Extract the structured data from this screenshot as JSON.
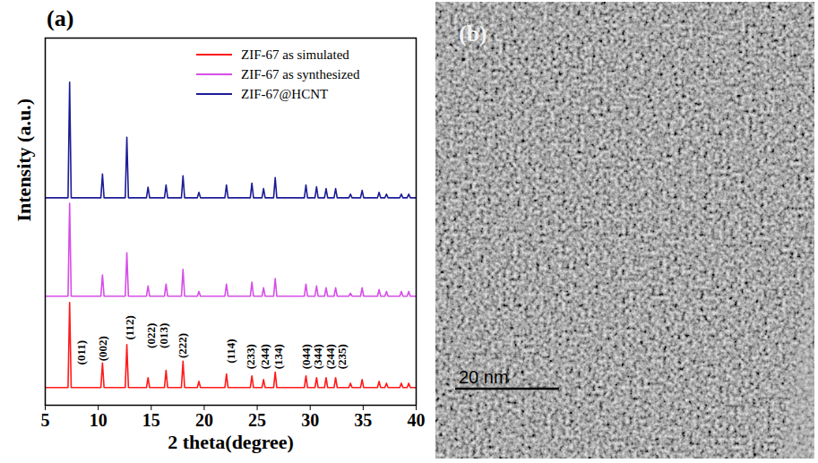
{
  "chart_data": {
    "type": "line",
    "title": "(a)",
    "x_label": "2 theta(degree)",
    "y_label": "Intensity (a.u.)",
    "xlim": [
      5,
      40
    ],
    "xticks": [
      5,
      10,
      15,
      20,
      25,
      30,
      35,
      40
    ],
    "ylim": [
      0,
      100
    ],
    "yticks": [],
    "tick_labels": "x",
    "grid": false,
    "legend": "upper right",
    "x": [
      5,
      7.15,
      7.3,
      7.45,
      10.25,
      10.4,
      10.55,
      12.55,
      12.7,
      12.85,
      14.55,
      14.7,
      14.85,
      16.25,
      16.4,
      16.55,
      17.85,
      18.0,
      18.15,
      19.35,
      19.5,
      19.65,
      21.95,
      22.1,
      22.25,
      24.35,
      24.5,
      24.65,
      25.45,
      25.6,
      25.75,
      26.55,
      26.7,
      26.85,
      29.45,
      29.6,
      29.75,
      30.45,
      30.6,
      30.75,
      31.35,
      31.5,
      31.65,
      32.25,
      32.4,
      32.55,
      33.65,
      33.8,
      33.95,
      34.75,
      34.9,
      35.05,
      36.35,
      36.5,
      36.65,
      37.05,
      37.2,
      37.35,
      38.45,
      38.6,
      38.75,
      39.15,
      39.3,
      39.45,
      40
    ],
    "series": [
      {
        "name": "ZIF-67 as simulated",
        "color": "#ff1a1a",
        "values": [
          4.8,
          4.8,
          28,
          4.8,
          4.8,
          11.5,
          4.8,
          4.8,
          16.5,
          4.8,
          4.8,
          7.5,
          4.8,
          4.8,
          9.5,
          4.8,
          4.8,
          12,
          4.8,
          4.8,
          6.5,
          4.8,
          4.8,
          8.5,
          4.8,
          4.8,
          8,
          4.8,
          4.8,
          7,
          4.8,
          4.8,
          9,
          4.8,
          4.8,
          8,
          4.8,
          4.8,
          7.5,
          4.8,
          4.8,
          7.5,
          4.8,
          4.8,
          7.5,
          4.8,
          4.8,
          6,
          4.8,
          4.8,
          7,
          4.8,
          4.8,
          6.5,
          4.8,
          4.8,
          6,
          4.8,
          4.8,
          6,
          4.8,
          4.8,
          6,
          4.8,
          4.8
        ]
      },
      {
        "name": "ZIF-67 as synthesized",
        "color": "#d64ee8",
        "values": [
          29.7,
          29.7,
          55,
          29.7,
          29.7,
          35.5,
          29.7,
          29.7,
          41.5,
          29.7,
          29.7,
          32.5,
          29.7,
          29.7,
          33,
          29.7,
          29.7,
          37,
          29.7,
          29.7,
          31,
          29.7,
          29.7,
          33,
          29.7,
          29.7,
          33.5,
          29.7,
          29.7,
          32,
          29.7,
          29.7,
          34.5,
          29.7,
          29.7,
          33,
          29.7,
          29.7,
          32.5,
          29.7,
          29.7,
          32,
          29.7,
          29.7,
          32,
          29.7,
          29.7,
          30.5,
          29.7,
          29.7,
          32,
          29.7,
          29.7,
          31.5,
          29.7,
          29.7,
          31,
          29.7,
          29.7,
          31,
          29.7,
          29.7,
          31,
          29.7,
          29.7
        ]
      },
      {
        "name": "ZIF-67@HCNT",
        "color": "#1c1c96",
        "values": [
          56.5,
          56.5,
          88,
          56.5,
          56.5,
          63,
          56.5,
          56.5,
          73,
          56.5,
          56.5,
          59.4,
          56.5,
          56.5,
          60,
          56.5,
          56.5,
          62.5,
          56.5,
          56.5,
          58,
          56.5,
          56.5,
          60,
          56.5,
          56.5,
          60.5,
          56.5,
          56.5,
          59,
          56.5,
          56.5,
          62,
          56.5,
          56.5,
          60,
          56.5,
          56.5,
          59.5,
          56.5,
          56.5,
          59,
          56.5,
          56.5,
          59,
          56.5,
          56.5,
          57.5,
          56.5,
          56.5,
          58.5,
          56.5,
          56.5,
          58,
          56.5,
          56.5,
          57.5,
          56.5,
          56.5,
          57.5,
          56.5,
          56.5,
          57.5,
          56.5,
          56.5
        ]
      }
    ],
    "annotations": [
      {
        "text": "(011)",
        "x": 8.4,
        "y": 11
      },
      {
        "text": "(002)",
        "x": 10.45,
        "y": 12
      },
      {
        "text": "(112)",
        "x": 12.95,
        "y": 17.8
      },
      {
        "text": "(022)",
        "x": 15.0,
        "y": 15.5
      },
      {
        "text": "(013)",
        "x": 16.2,
        "y": 15.5
      },
      {
        "text": "(222)",
        "x": 18.0,
        "y": 12.8
      },
      {
        "text": "(114)",
        "x": 22.5,
        "y": 11.4
      },
      {
        "text": "(233)",
        "x": 24.4,
        "y": 9.8
      },
      {
        "text": "(244)",
        "x": 25.7,
        "y": 9.8
      },
      {
        "text": "(134)",
        "x": 27.0,
        "y": 9.8
      },
      {
        "text": "(044)",
        "x": 29.6,
        "y": 9.8
      },
      {
        "text": "(344)",
        "x": 30.75,
        "y": 9.8
      },
      {
        "text": "(244)",
        "x": 31.9,
        "y": 9.8
      },
      {
        "text": "(235)",
        "x": 33.0,
        "y": 9.8
      }
    ]
  },
  "image": {
    "label": "(b)",
    "scale_bar_label": "20 nm"
  }
}
